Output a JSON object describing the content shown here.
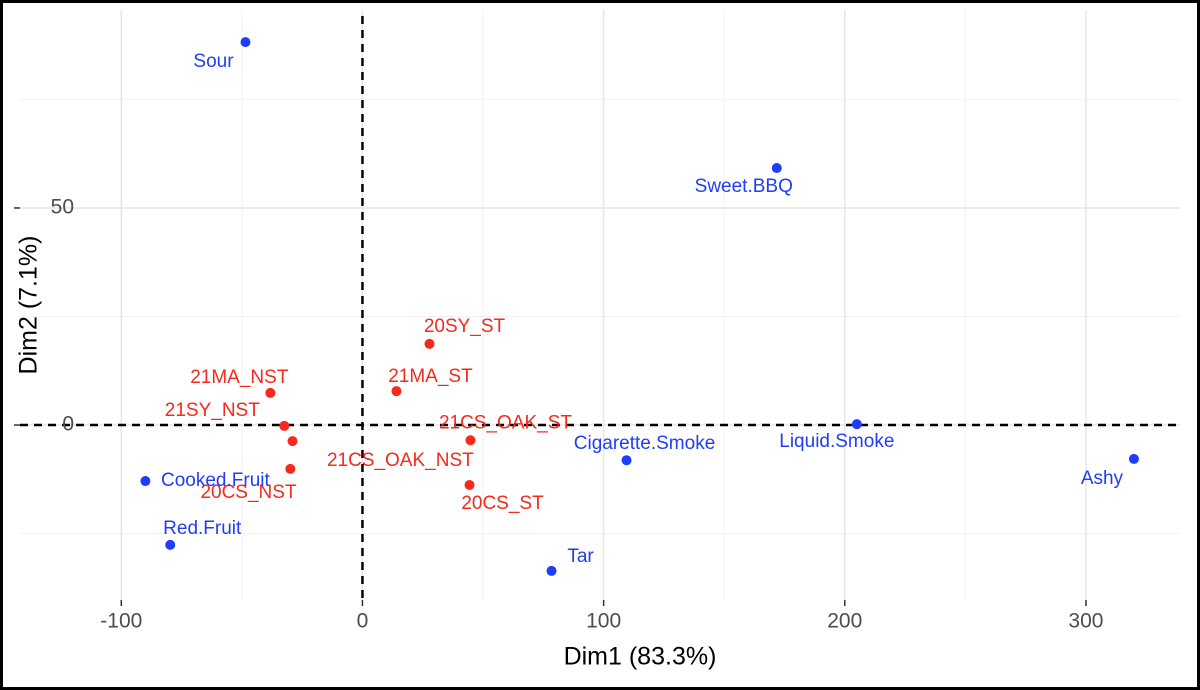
{
  "chart_data": {
    "type": "scatter",
    "x_label": "Dim1 (83.3%)",
    "y_label": "Dim2 (7.1%)",
    "xlim": [
      -142,
      339
    ],
    "ylim": [
      -40.3,
      95.6
    ],
    "xticks": [
      -100,
      0,
      100,
      200,
      300
    ],
    "yticks": [
      0,
      50
    ],
    "xminorticks": [
      -50,
      50,
      150,
      250
    ],
    "yminorticks": [
      -25,
      25,
      75
    ],
    "grid": true,
    "reference_lines": {
      "x": 0,
      "y": 0
    },
    "series": [
      {
        "color": "#f5291c",
        "points": [
          {
            "label": "20SY_ST",
            "x": 27.8,
            "y": 18.7
          },
          {
            "label": "21MA_ST",
            "x": 14.1,
            "y": 7.8
          },
          {
            "label": "21MA_NST",
            "x": -38.2,
            "y": 7.4
          },
          {
            "label": "21SY_NST",
            "x": -32.4,
            "y": -0.2
          },
          {
            "label": "21CS_OAK_ST",
            "x": 44.8,
            "y": -3.5
          },
          {
            "label": "21CS_OAK_NST",
            "x": -29.9,
            "y": -10.1
          },
          {
            "label": "20CS_NST",
            "x": -29,
            "y": -3.7
          },
          {
            "label": "20CS_ST",
            "x": 44.4,
            "y": -13.8
          }
        ]
      },
      {
        "color": "#1f3dfa",
        "points": [
          {
            "label": "Sour",
            "x": -48.5,
            "y": 88.2
          },
          {
            "label": "Sweet.BBQ",
            "x": 171.8,
            "y": 59.2
          },
          {
            "label": "Cigarette.Smoke",
            "x": 109.5,
            "y": -8.1
          },
          {
            "label": "Liquid.Smoke",
            "x": 205,
            "y": 0.2
          },
          {
            "label": "Ashy",
            "x": 319.9,
            "y": -7.8
          },
          {
            "label": "Cooked.Fruit",
            "x": -90,
            "y": -12.9
          },
          {
            "label": "Red.Fruit",
            "x": -79.7,
            "y": -27.6
          },
          {
            "label": "Tar",
            "x": 78.4,
            "y": -33.6
          }
        ]
      }
    ]
  }
}
